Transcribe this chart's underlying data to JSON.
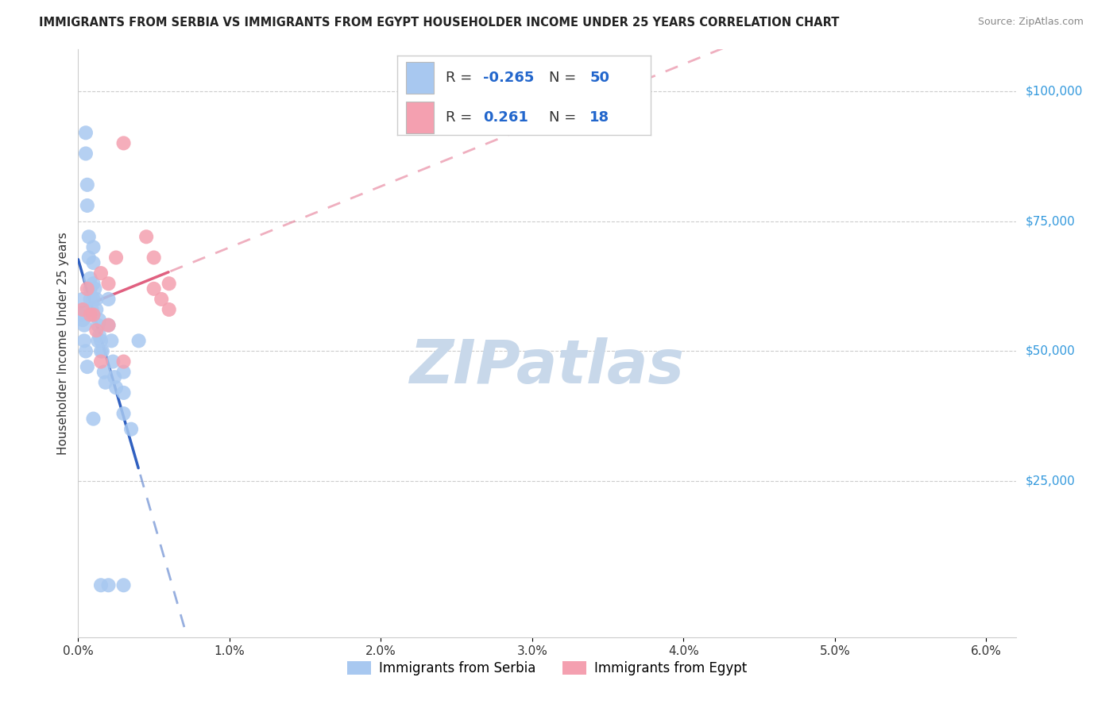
{
  "title": "IMMIGRANTS FROM SERBIA VS IMMIGRANTS FROM EGYPT HOUSEHOLDER INCOME UNDER 25 YEARS CORRELATION CHART",
  "source": "Source: ZipAtlas.com",
  "ylabel": "Householder Income Under 25 years",
  "ytick_labels": [
    "$25,000",
    "$50,000",
    "$75,000",
    "$100,000"
  ],
  "ytick_values": [
    25000,
    50000,
    75000,
    100000
  ],
  "xlim": [
    0.0,
    0.062
  ],
  "ylim": [
    -5000,
    108000
  ],
  "serbia_R": "-0.265",
  "serbia_N": "50",
  "egypt_R": "0.261",
  "egypt_N": "18",
  "serbia_color": "#a8c8f0",
  "egypt_color": "#f4a0b0",
  "serbia_line_color": "#3060c0",
  "egypt_line_color": "#e06080",
  "serbia_x": [
    0.0003,
    0.0004,
    0.0005,
    0.0005,
    0.0006,
    0.0006,
    0.0007,
    0.0007,
    0.0008,
    0.0008,
    0.0008,
    0.0009,
    0.001,
    0.001,
    0.001,
    0.001,
    0.001,
    0.0011,
    0.0012,
    0.0012,
    0.0013,
    0.0013,
    0.0014,
    0.0014,
    0.0015,
    0.0015,
    0.0016,
    0.0017,
    0.0018,
    0.002,
    0.002,
    0.0022,
    0.0023,
    0.0024,
    0.0025,
    0.003,
    0.003,
    0.003,
    0.0035,
    0.004,
    0.0002,
    0.0003,
    0.0004,
    0.0004,
    0.0005,
    0.0006,
    0.001,
    0.0015,
    0.002,
    0.003
  ],
  "serbia_y": [
    60000,
    58000,
    92000,
    88000,
    82000,
    78000,
    72000,
    68000,
    64000,
    62000,
    60000,
    58000,
    70000,
    67000,
    63000,
    60000,
    57000,
    62000,
    60000,
    58000,
    55000,
    52000,
    56000,
    53000,
    52000,
    50000,
    50000,
    46000,
    44000,
    60000,
    55000,
    52000,
    48000,
    45000,
    43000,
    46000,
    42000,
    38000,
    35000,
    52000,
    57000,
    56000,
    55000,
    52000,
    50000,
    47000,
    37000,
    5000,
    5000,
    5000
  ],
  "egypt_x": [
    0.0003,
    0.0006,
    0.0008,
    0.001,
    0.0012,
    0.0015,
    0.002,
    0.002,
    0.003,
    0.0045,
    0.005,
    0.005,
    0.0055,
    0.006,
    0.006,
    0.0025,
    0.0015,
    0.003
  ],
  "egypt_y": [
    58000,
    62000,
    57000,
    57000,
    54000,
    65000,
    63000,
    55000,
    48000,
    72000,
    68000,
    62000,
    60000,
    58000,
    63000,
    68000,
    48000,
    90000
  ],
  "watermark": "ZIPatlas",
  "watermark_color": "#c8d8ea"
}
